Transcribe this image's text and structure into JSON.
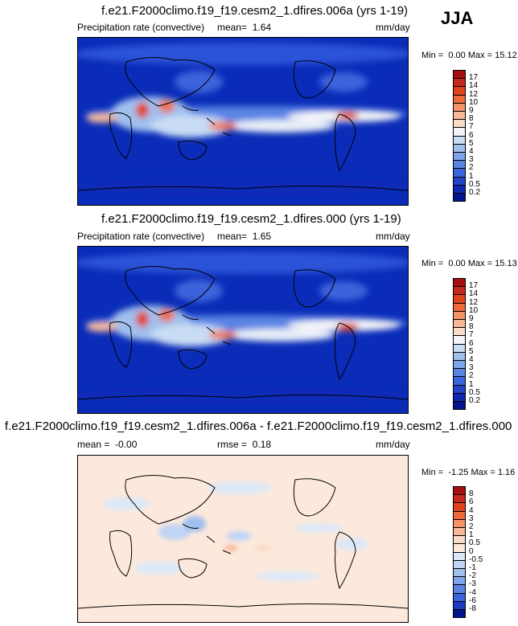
{
  "season": "JJA",
  "chart_data": [
    {
      "type": "heatmap",
      "title": "f.e21.F2000climo.f19_f19.cesm2_1.dfires.006a (yrs 1-19)",
      "variable": "Precipitation rate (convective)",
      "mean_label": "mean=",
      "mean": "1.64",
      "units": "mm/day",
      "min_label": "Min =",
      "min": "0.00",
      "max_label": "Max =",
      "max": "15.12",
      "colorbar": {
        "levels": [
          "17",
          "14",
          "12",
          "10",
          "9",
          "8",
          "7",
          "6",
          "5",
          "4",
          "3",
          "2",
          "1",
          "0.5",
          "0.2"
        ],
        "colors": [
          "#a50f0f",
          "#c8281e",
          "#e0421e",
          "#ee6a3c",
          "#f4926a",
          "#f7b898",
          "#fbdcc8",
          "#f4f4f8",
          "#c8dcf4",
          "#a0c0ee",
          "#7ea4ea",
          "#5a84e4",
          "#3c64dc",
          "#2244c8",
          "#1028b0",
          "#001490"
        ]
      }
    },
    {
      "type": "heatmap",
      "title": "f.e21.F2000climo.f19_f19.cesm2_1.dfires.000 (yrs 1-19)",
      "variable": "Precipitation rate (convective)",
      "mean_label": "mean=",
      "mean": "1.65",
      "units": "mm/day",
      "min_label": "Min =",
      "min": "0.00",
      "max_label": "Max =",
      "max": "15.13",
      "colorbar": {
        "levels": [
          "17",
          "14",
          "12",
          "10",
          "9",
          "8",
          "7",
          "6",
          "5",
          "4",
          "3",
          "2",
          "1",
          "0.5",
          "0.2"
        ],
        "colors": [
          "#a50f0f",
          "#c8281e",
          "#e0421e",
          "#ee6a3c",
          "#f4926a",
          "#f7b898",
          "#fbdcc8",
          "#f4f4f8",
          "#c8dcf4",
          "#a0c0ee",
          "#7ea4ea",
          "#5a84e4",
          "#3c64dc",
          "#2244c8",
          "#1028b0",
          "#001490"
        ]
      }
    },
    {
      "type": "heatmap",
      "title": "f.e21.F2000climo.f19_f19.cesm2_1.dfires.006a - f.e21.F2000climo.f19_f19.cesm2_1.dfires.000",
      "mean_label": "mean =",
      "mean": "-0.00",
      "rmse_label": "rmse =",
      "rmse": "0.18",
      "units": "mm/day",
      "min_label": "Min =",
      "min": "-1.25",
      "max_label": "Max =",
      "max": "1.16",
      "colorbar": {
        "levels": [
          "8",
          "6",
          "4",
          "3",
          "2",
          "1",
          "0.5",
          "0",
          "-0.5",
          "-1",
          "-2",
          "-3",
          "-4",
          "-6",
          "-8"
        ],
        "colors": [
          "#a50f0f",
          "#c8281e",
          "#e0421e",
          "#ee6a3c",
          "#f4926a",
          "#f7b898",
          "#fbdcc8",
          "#fde9dc",
          "#dce8f8",
          "#c0d4f4",
          "#a0c0ee",
          "#7ea4ea",
          "#5a84e4",
          "#3c64dc",
          "#1a3cc0",
          "#001490"
        ]
      }
    }
  ]
}
